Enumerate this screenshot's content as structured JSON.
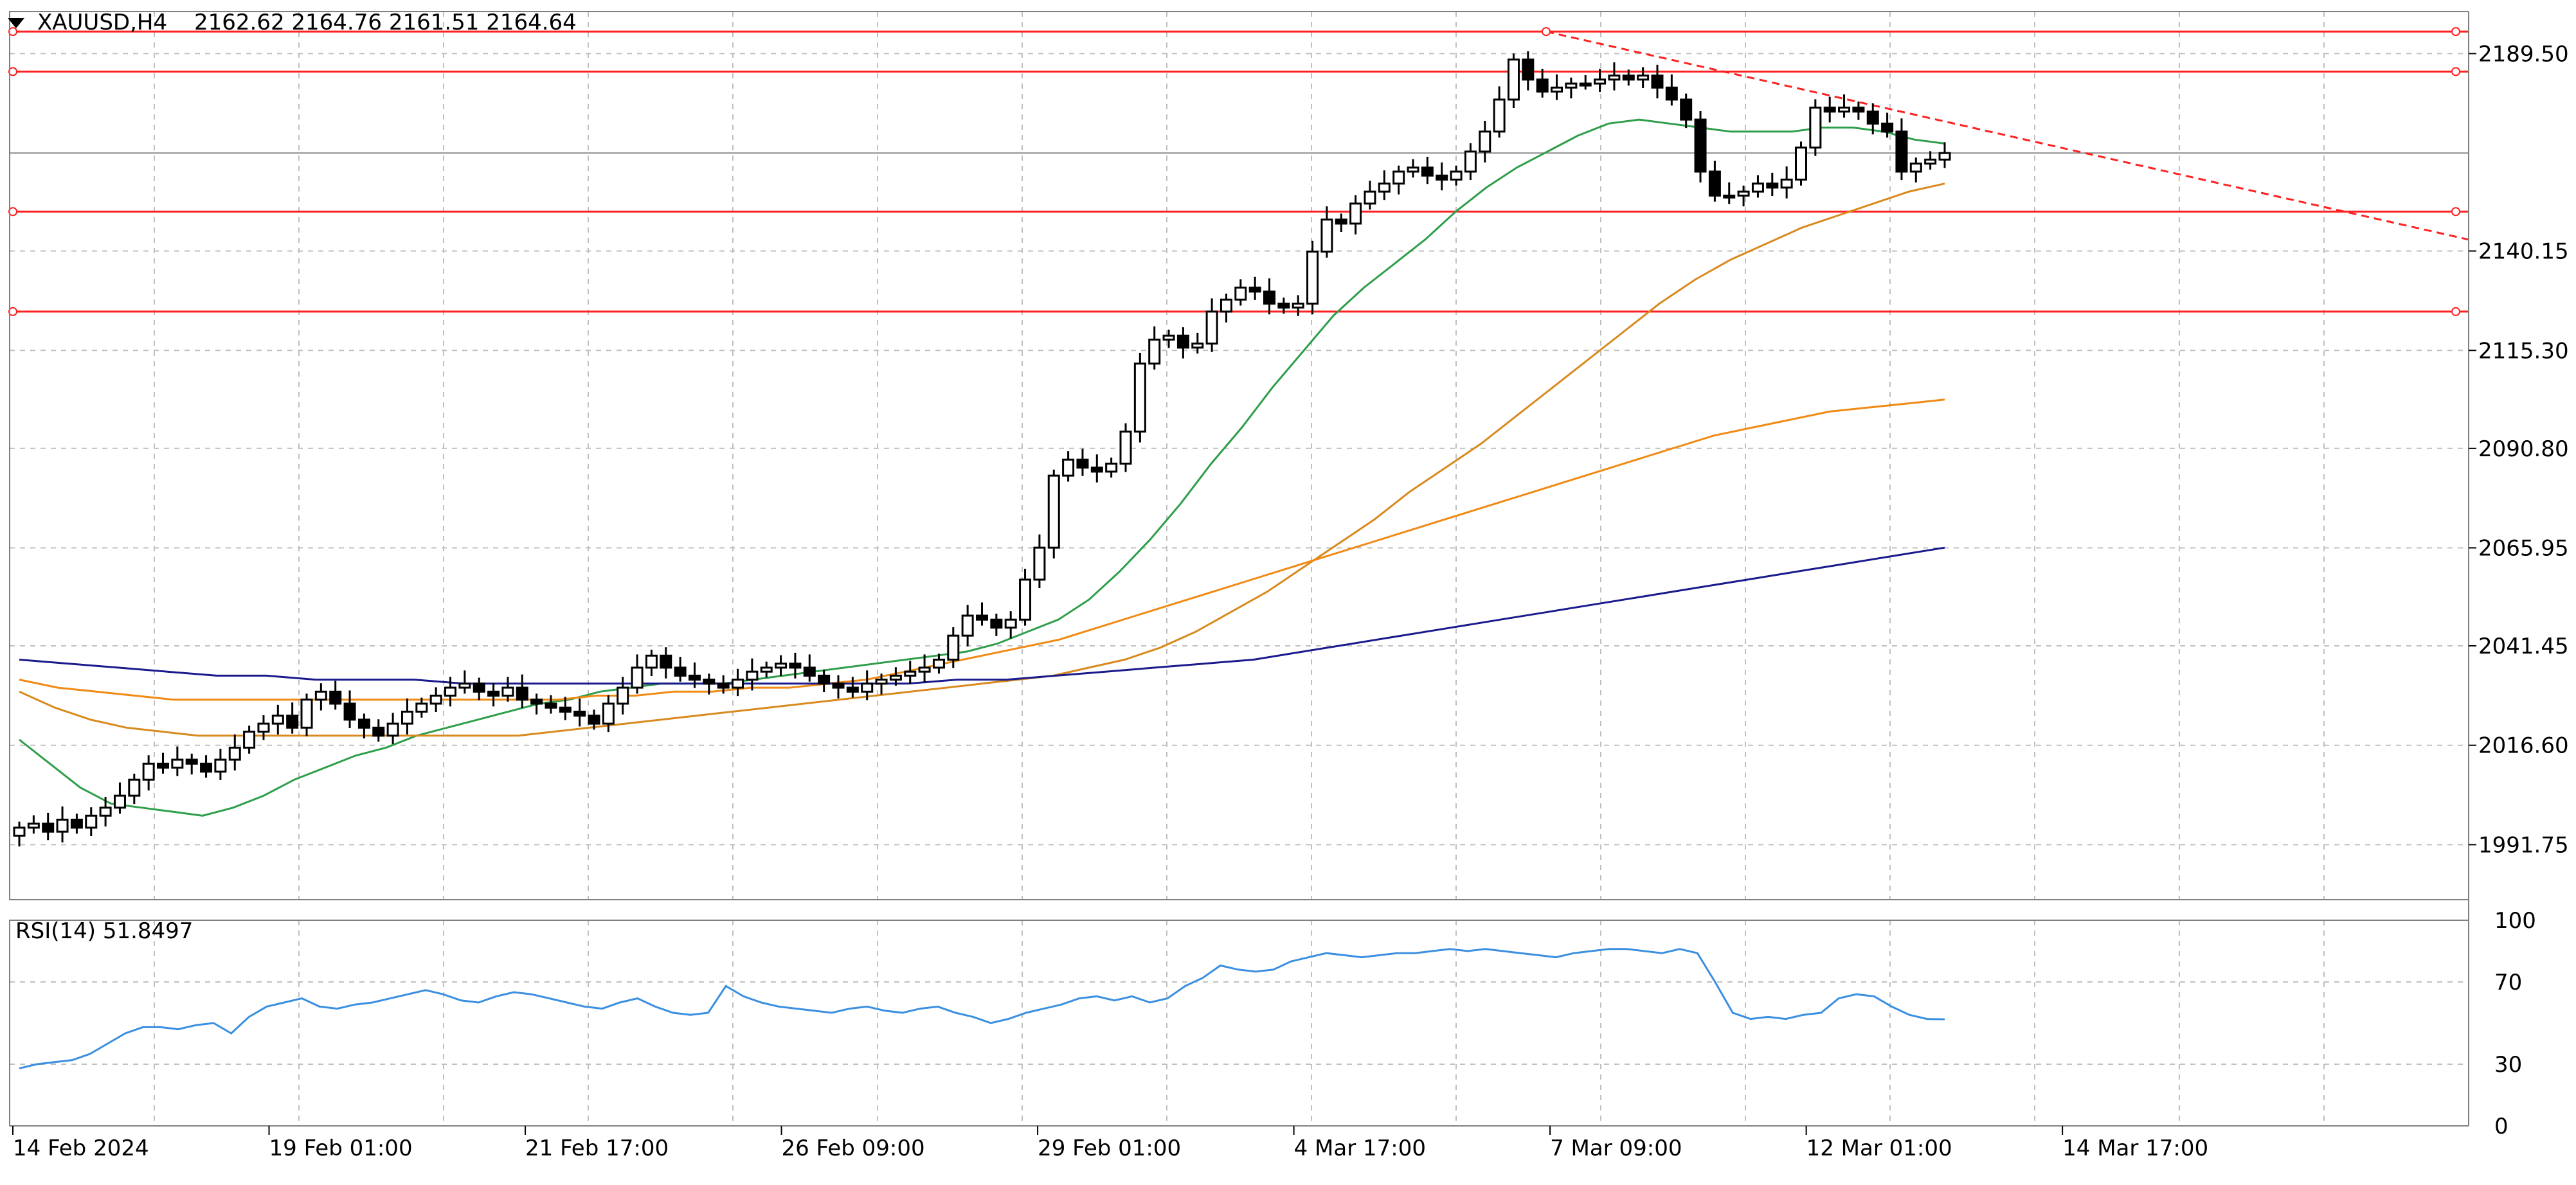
{
  "header": {
    "symbol": "XAUUSD,H4",
    "ohlc": "2162.62 2164.76 2161.51 2164.64",
    "menu_icon": "triangle-down-icon"
  },
  "rsi_panel": {
    "label": "RSI(14) 51.8497"
  },
  "colors": {
    "background": "#ffffff",
    "grid": "#c0c0c0",
    "axis": "#808080",
    "level_line": "#ff2020",
    "level_box": "#ff0000",
    "current_price_box": "#000000",
    "candle": "#000000",
    "ma_fast": "#2e9e4a",
    "ma_mid": "#d98a1e",
    "ma_slow": "#f08a14",
    "ma_long": "#1a1a8c",
    "rsi_line": "#3b8fe0"
  },
  "chart_data": {
    "type": "candlestick",
    "symbol": "XAUUSD",
    "timeframe": "H4",
    "current_price": "2164.64",
    "ylim": [
      1978,
      2200
    ],
    "y_ticks": [
      "2189.50",
      "2140.15",
      "2115.30",
      "2090.80",
      "2065.95",
      "2041.45",
      "2016.60",
      "1991.75"
    ],
    "x_tick_labels": [
      "14 Feb 2024",
      "19 Feb 01:00",
      "21 Feb 17:00",
      "26 Feb 09:00",
      "29 Feb 01:00",
      "4 Mar 17:00",
      "7 Mar 09:00",
      "12 Mar 01:00",
      "14 Mar 17:00"
    ],
    "horizontal_levels": [
      {
        "price": 2195.0,
        "label": "2195.00"
      },
      {
        "price": 2185.0,
        "label": "2185.00"
      },
      {
        "price": 2150.0,
        "label": "2150.00"
      },
      {
        "price": 2125.0,
        "label": "2125.00"
      }
    ],
    "trendline": {
      "style": "dashed",
      "color": "red",
      "from_price": 2195,
      "to_price": 2143
    },
    "close_path": [
      1996,
      1997,
      1995,
      1998,
      1996,
      1999,
      2001,
      2004,
      2008,
      2012,
      2011,
      2013,
      2012,
      2010,
      2013,
      2016,
      2020,
      2022,
      2024,
      2021,
      2028,
      2030,
      2027,
      2023,
      2021,
      2019,
      2022,
      2025,
      2027,
      2029,
      2031,
      2032,
      2030,
      2029,
      2031,
      2028,
      2027,
      2026,
      2025,
      2024,
      2022,
      2027,
      2031,
      2036,
      2039,
      2036,
      2034,
      2033,
      2032,
      2031,
      2033,
      2035,
      2036,
      2037,
      2036,
      2034,
      2032,
      2031,
      2030,
      2032,
      2033,
      2034,
      2035,
      2036,
      2038,
      2044,
      2049,
      2048,
      2046,
      2048,
      2058,
      2066,
      2084,
      2088,
      2086,
      2085,
      2087,
      2095,
      2112,
      2118,
      2119,
      2116,
      2117,
      2125,
      2128,
      2131,
      2130,
      2127,
      2126,
      2127,
      2140,
      2148,
      2147,
      2152,
      2155,
      2157,
      2160,
      2161,
      2159,
      2158,
      2160,
      2165,
      2170,
      2178,
      2188,
      2183,
      2180,
      2181,
      2182,
      2182,
      2183,
      2184,
      2183,
      2184,
      2181,
      2178,
      2173,
      2160,
      2154,
      2154,
      2155,
      2157,
      2156,
      2158,
      2166,
      2176,
      2175,
      2176,
      2175,
      2172,
      2170,
      2160,
      2162,
      2163,
      2164.64
    ],
    "ma_series": [
      {
        "label": "",
        "color": "green",
        "values": [
          2018,
          2012,
          2006,
          2002,
          2001,
          2000,
          1999,
          2001,
          2004,
          2008,
          2011,
          2014,
          2016,
          2019,
          2021,
          2023,
          2025,
          2027,
          2028,
          2030,
          2031,
          2032,
          2032,
          2032,
          2033,
          2034,
          2035,
          2036,
          2037,
          2038,
          2039,
          2040,
          2042,
          2045,
          2048,
          2053,
          2060,
          2068,
          2077,
          2087,
          2096,
          2106,
          2115,
          2124,
          2131,
          2137,
          2143,
          2150,
          2156,
          2161,
          2165,
          2169,
          2172,
          2173,
          2172,
          2171,
          2170,
          2170,
          2170,
          2171,
          2171,
          2170,
          2168,
          2167
        ]
      },
      {
        "label": "",
        "color": "orange",
        "values": [
          2030,
          2026,
          2023,
          2021,
          2020,
          2019,
          2019,
          2019,
          2019,
          2019,
          2019,
          2019,
          2019,
          2019,
          2019,
          2020,
          2021,
          2022,
          2023,
          2024,
          2025,
          2026,
          2027,
          2028,
          2029,
          2030,
          2031,
          2032,
          2033,
          2034,
          2036,
          2038,
          2041,
          2045,
          2050,
          2055,
          2061,
          2067,
          2073,
          2080,
          2086,
          2092,
          2099,
          2106,
          2113,
          2120,
          2127,
          2133,
          2138,
          2142,
          2146,
          2149,
          2152,
          2155,
          2157
        ]
      },
      {
        "label": "",
        "color": "orange",
        "values": [
          2033,
          2031,
          2030,
          2029,
          2028,
          2028,
          2028,
          2028,
          2028,
          2028,
          2028,
          2028,
          2028,
          2028,
          2028,
          2029,
          2029,
          2030,
          2030,
          2031,
          2031,
          2032,
          2033,
          2035,
          2037,
          2039,
          2041,
          2043,
          2046,
          2049,
          2052,
          2055,
          2058,
          2061,
          2064,
          2067,
          2070,
          2073,
          2076,
          2079,
          2082,
          2085,
          2088,
          2091,
          2094,
          2096,
          2098,
          2100,
          2101,
          2102,
          2103
        ]
      },
      {
        "label": "",
        "color": "navy",
        "values": [
          2038,
          2037,
          2036,
          2035,
          2034,
          2034,
          2033,
          2033,
          2033,
          2032,
          2032,
          2032,
          2032,
          2032,
          2032,
          2032,
          2032,
          2032,
          2032,
          2033,
          2033,
          2034,
          2035,
          2036,
          2037,
          2038,
          2040,
          2042,
          2044,
          2046,
          2048,
          2050,
          2052,
          2054,
          2056,
          2058,
          2060,
          2062,
          2064,
          2066
        ]
      }
    ],
    "rsi": {
      "period": 14,
      "last": "51.8497",
      "ylim": [
        0,
        100
      ],
      "levels": [
        "100",
        "70",
        "30",
        "0"
      ],
      "values": [
        28,
        30,
        31,
        32,
        35,
        40,
        45,
        48,
        48,
        47,
        49,
        50,
        45,
        53,
        58,
        60,
        62,
        58,
        57,
        59,
        60,
        62,
        64,
        66,
        64,
        61,
        60,
        63,
        65,
        64,
        62,
        60,
        58,
        57,
        60,
        62,
        58,
        55,
        54,
        55,
        68,
        63,
        60,
        58,
        57,
        56,
        55,
        57,
        58,
        56,
        55,
        57,
        58,
        55,
        53,
        50,
        52,
        55,
        57,
        59,
        62,
        63,
        61,
        63,
        60,
        62,
        68,
        72,
        78,
        76,
        75,
        76,
        80,
        82,
        84,
        83,
        82,
        83,
        84,
        84,
        85,
        86,
        85,
        86,
        85,
        84,
        83,
        82,
        84,
        85,
        86,
        86,
        85,
        84,
        86,
        84,
        70,
        55,
        52,
        53,
        52,
        54,
        55,
        62,
        64,
        63,
        58,
        54,
        52,
        51.8497
      ]
    }
  }
}
